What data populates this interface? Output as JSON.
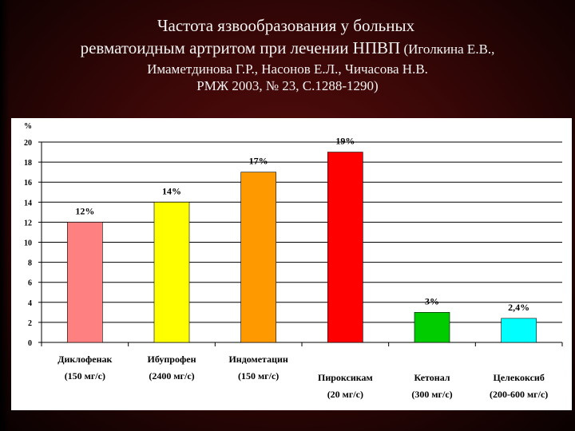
{
  "slide": {
    "title_line1": "Частота язвообразования у больных",
    "title_line2_main": "ревматоидным артритом при лечении НПВП",
    "title_line2_small": " (Иголкина Е.В.,",
    "title_line3": "Имаметдинова Г.Р., Насонов Е.Л., Чичасова Н.В.",
    "title_line4": "РМЖ 2003, № 23, С.1288-1290)"
  },
  "chart_data": {
    "type": "bar",
    "y_unit_label": "%",
    "ylim": [
      0,
      20
    ],
    "yticks": [
      "0",
      "2",
      "4",
      "6",
      "8",
      "10",
      "12",
      "14",
      "16",
      "18",
      "20"
    ],
    "grid": "horizontal",
    "categories": [
      {
        "line1": "Диклофенак",
        "line2": "(150 мг/с)"
      },
      {
        "line1": "Ибупрофен",
        "line2": "(2400 мг/с)"
      },
      {
        "line1": "Индометацин",
        "line2": "(150 мг/с)"
      },
      {
        "line1": "Пироксикам",
        "line2": "(20 мг/с)"
      },
      {
        "line1": "Кетонал",
        "line2": "(300 мг/с)"
      },
      {
        "line1": "Целекоксиб",
        "line2": "(200-600 мг/с)"
      }
    ],
    "values": [
      12,
      14,
      17,
      19,
      3,
      2.4
    ],
    "data_labels": [
      "12%",
      "14%",
      "17%",
      "19%",
      "3%",
      "2,4%"
    ],
    "colors": [
      "#ff8080",
      "#ffff00",
      "#ff9900",
      "#ff0000",
      "#00cc00",
      "#00ffff"
    ]
  }
}
